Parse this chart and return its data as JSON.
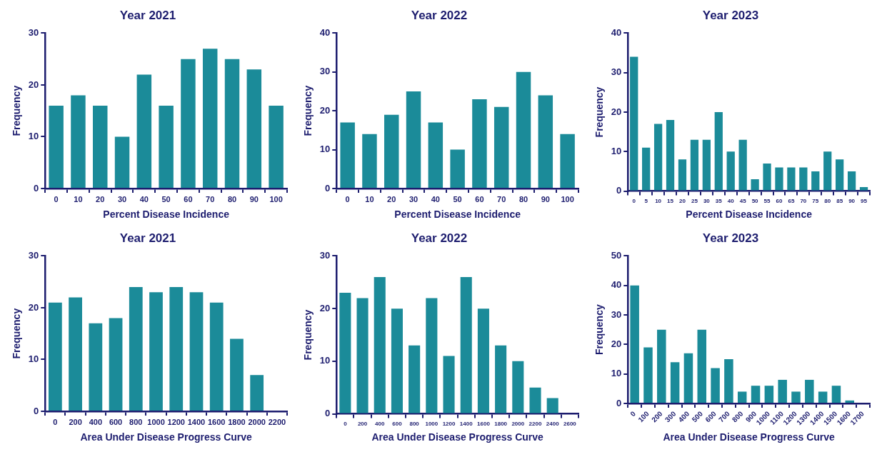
{
  "chart_data": [
    {
      "type": "bar",
      "title": "Year 2021",
      "xlabel": "Percent Disease Incidence",
      "ylabel": "Frequency",
      "categories": [
        "0",
        "10",
        "20",
        "30",
        "40",
        "50",
        "60",
        "70",
        "80",
        "90",
        "100"
      ],
      "values": [
        16,
        18,
        16,
        10,
        22,
        16,
        25,
        27,
        25,
        23,
        16
      ],
      "color": "#1b8b99",
      "ylim": [
        0,
        30
      ],
      "yticks": [
        0,
        10,
        20,
        30
      ]
    },
    {
      "type": "bar",
      "title": "Year 2022",
      "xlabel": "Percent Disease Incidence",
      "ylabel": "Frequency",
      "categories": [
        "0",
        "10",
        "20",
        "30",
        "40",
        "50",
        "60",
        "70",
        "80",
        "90",
        "100"
      ],
      "values": [
        17,
        14,
        19,
        25,
        17,
        10,
        23,
        21,
        30,
        24,
        14
      ],
      "color": "#1b8b99",
      "ylim": [
        0,
        40
      ],
      "yticks": [
        0,
        10,
        20,
        30,
        40
      ]
    },
    {
      "type": "bar",
      "title": "Year 2023",
      "xlabel": "Percent Disease Incidence",
      "ylabel": "Frequency",
      "categories": [
        "0",
        "5",
        "10",
        "15",
        "20",
        "25",
        "30",
        "35",
        "40",
        "45",
        "50",
        "55",
        "60",
        "65",
        "70",
        "75",
        "80",
        "85",
        "90",
        "95"
      ],
      "values": [
        34,
        11,
        17,
        18,
        8,
        13,
        13,
        20,
        10,
        13,
        3,
        7,
        6,
        6,
        6,
        5,
        10,
        8,
        5,
        1
      ],
      "color": "#1b8b99",
      "ylim": [
        0,
        40
      ],
      "yticks": [
        0,
        10,
        20,
        30,
        40
      ]
    },
    {
      "type": "bar",
      "title": "Year 2021",
      "xlabel": "Area Under Disease Progress Curve",
      "ylabel": "Frequency",
      "categories": [
        "0",
        "200",
        "400",
        "600",
        "800",
        "1000",
        "1200",
        "1400",
        "1600",
        "1800",
        "2000",
        "2200"
      ],
      "values": [
        21,
        22,
        17,
        18,
        24,
        23,
        24,
        23,
        21,
        14,
        7,
        null
      ],
      "color": "#1b8b99",
      "ylim": [
        0,
        30
      ],
      "yticks": [
        0,
        10,
        20,
        30
      ]
    },
    {
      "type": "bar",
      "title": "Year 2022",
      "xlabel": "Area Under Disease Progress Curve",
      "ylabel": "Frequency",
      "categories": [
        "0",
        "200",
        "400",
        "600",
        "800",
        "1000",
        "1200",
        "1400",
        "1600",
        "1800",
        "2000",
        "2200",
        "2400",
        "2600"
      ],
      "values": [
        23,
        22,
        26,
        20,
        13,
        22,
        11,
        26,
        20,
        13,
        10,
        5,
        3,
        null
      ],
      "color": "#1b8b99",
      "ylim": [
        0,
        30
      ],
      "yticks": [
        0,
        10,
        20,
        30
      ]
    },
    {
      "type": "bar",
      "title": "Year 2023",
      "xlabel": "Area Under Disease Progress Curve",
      "ylabel": "Frequency",
      "categories": [
        "0",
        "100",
        "200",
        "300",
        "400",
        "500",
        "600",
        "700",
        "800",
        "900",
        "1000",
        "1100",
        "1200",
        "1300",
        "1400",
        "1500",
        "1600",
        "1700"
      ],
      "values": [
        40,
        19,
        25,
        14,
        17,
        25,
        12,
        15,
        4,
        6,
        6,
        8,
        4,
        8,
        4,
        6,
        1,
        null
      ],
      "color": "#1b8b99",
      "ylim": [
        0,
        50
      ],
      "yticks": [
        0,
        10,
        20,
        30,
        40,
        50
      ]
    }
  ]
}
